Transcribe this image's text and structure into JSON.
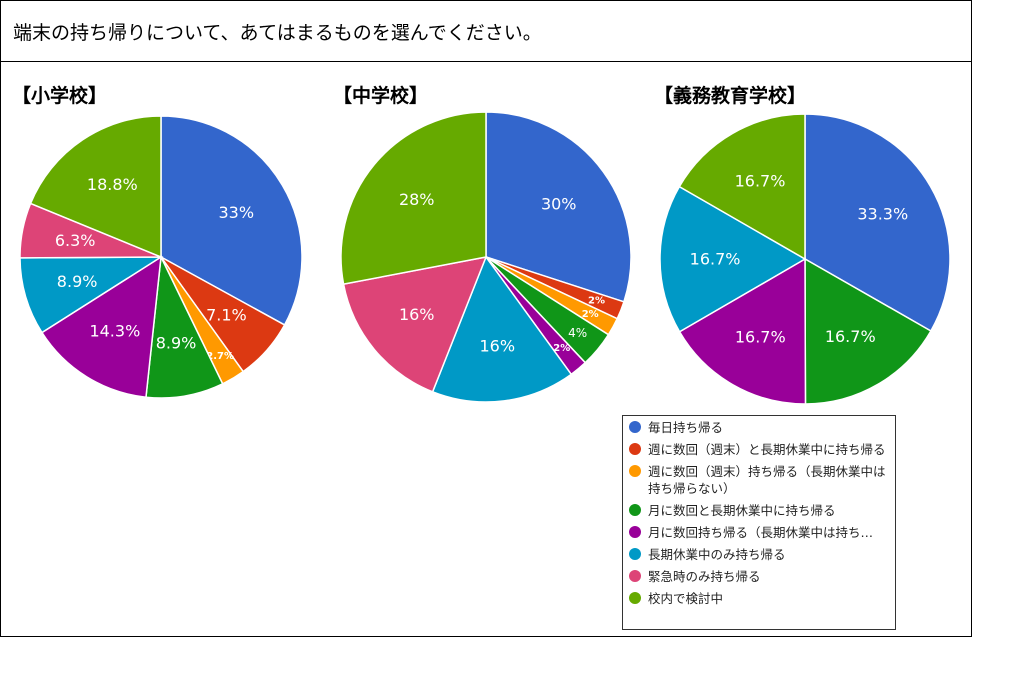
{
  "question": "端末の持ち帰りについて、あてはまるものを選んでください。",
  "legend": [
    {
      "label": "毎日持ち帰る",
      "color": "#3366cc"
    },
    {
      "label": "週に数回（週末）と長期休業中に持ち帰る",
      "color": "#dc3912"
    },
    {
      "label": "週に数回（週末）持ち帰る（長期休業中は持ち帰らない）",
      "color": "#ff9900"
    },
    {
      "label": "月に数回と長期休業中に持ち帰る",
      "color": "#109618"
    },
    {
      "label": "月に数回持ち帰る（長期休業中は持ち…",
      "color": "#990099"
    },
    {
      "label": "長期休業中のみ持ち帰る",
      "color": "#0099c6"
    },
    {
      "label": "緊急時のみ持ち帰る",
      "color": "#dd4477"
    },
    {
      "label": "校内で検討中",
      "color": "#66aa00"
    }
  ],
  "chart_data": [
    {
      "type": "pie",
      "title": "【小学校】",
      "slices": [
        {
          "label": "毎日持ち帰る",
          "value": 33,
          "text": "33%"
        },
        {
          "label": "週に数回（週末）と長期休業中に持ち帰る",
          "value": 7.1,
          "text": "7.1%"
        },
        {
          "label": "週に数回（週末）持ち帰る（長期休業中は持ち帰らない）",
          "value": 2.7,
          "text": "2.7%"
        },
        {
          "label": "月に数回と長期休業中に持ち帰る",
          "value": 8.9,
          "text": "8.9%"
        },
        {
          "label": "月に数回持ち帰る（長期休業中は持ち…",
          "value": 14.3,
          "text": "14.3%"
        },
        {
          "label": "長期休業中のみ持ち帰る",
          "value": 8.9,
          "text": "8.9%"
        },
        {
          "label": "緊急時のみ持ち帰る",
          "value": 6.3,
          "text": "6.3%"
        },
        {
          "label": "校内で検討中",
          "value": 18.8,
          "text": "18.8%"
        }
      ]
    },
    {
      "type": "pie",
      "title": "【中学校】",
      "slices": [
        {
          "label": "毎日持ち帰る",
          "value": 30,
          "text": "30%"
        },
        {
          "label": "週に数回（週末）と長期休業中に持ち帰る",
          "value": 2,
          "text": "2%"
        },
        {
          "label": "週に数回（週末）持ち帰る（長期休業中は持ち帰らない）",
          "value": 2,
          "text": "2%"
        },
        {
          "label": "月に数回と長期休業中に持ち帰る",
          "value": 4,
          "text": "4%"
        },
        {
          "label": "月に数回持ち帰る（長期休業中は持ち…",
          "value": 2,
          "text": "2%"
        },
        {
          "label": "長期休業中のみ持ち帰る",
          "value": 16,
          "text": "16%"
        },
        {
          "label": "緊急時のみ持ち帰る",
          "value": 16,
          "text": "16%"
        },
        {
          "label": "校内で検討中",
          "value": 28,
          "text": "28%"
        }
      ]
    },
    {
      "type": "pie",
      "title": "【義務教育学校】",
      "slices": [
        {
          "label": "毎日持ち帰る",
          "value": 33.3,
          "text": "33.3%"
        },
        {
          "label": "月に数回と長期休業中に持ち帰る",
          "value": 16.7,
          "text": "16.7%"
        },
        {
          "label": "月に数回持ち帰る（長期休業中は持ち…",
          "value": 16.7,
          "text": "16.7%"
        },
        {
          "label": "長期休業中のみ持ち帰る",
          "value": 16.7,
          "text": "16.7%"
        },
        {
          "label": "校内で検討中",
          "value": 16.7,
          "text": "16.7%"
        }
      ]
    }
  ]
}
